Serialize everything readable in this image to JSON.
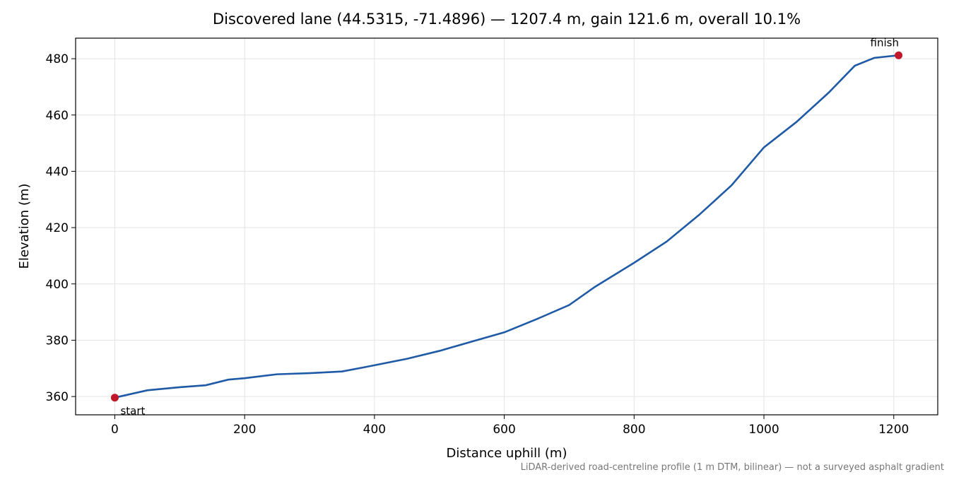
{
  "chart_data": {
    "type": "line",
    "title": "Discovered lane (44.5315, -71.4896) — 1207.4 m, gain 121.6 m, overall 10.1%",
    "x_label": "Distance uphill (m)",
    "y_label": "Elevation (m)",
    "footnote": "LiDAR-derived road-centreline profile (1 m DTM, bilinear) — not a surveyed asphalt gradient",
    "x": [
      0,
      50,
      100,
      140,
      175,
      200,
      250,
      300,
      350,
      380,
      400,
      450,
      500,
      550,
      600,
      650,
      700,
      740,
      800,
      850,
      900,
      950,
      1000,
      1050,
      1100,
      1140,
      1170,
      1207.4
    ],
    "series": [
      {
        "color": "#1f5aa6",
        "values": [
          359.6,
          362.2,
          363.3,
          364.0,
          366.0,
          366.5,
          367.9,
          368.3,
          368.9,
          370.2,
          371.1,
          373.4,
          376.2,
          379.5,
          382.8,
          387.5,
          392.5,
          399.0,
          407.5,
          415.0,
          424.5,
          435.0,
          448.5,
          457.5,
          468.0,
          477.5,
          480.3,
          481.2
        ]
      }
    ],
    "annotations": [
      {
        "text": "start",
        "x": 0,
        "y": 359.6
      },
      {
        "text": "finish",
        "x": 1207.4,
        "y": 481.2
      }
    ],
    "marker_color": "#c0182a",
    "xlim": [
      -60.37,
      1267.77
    ],
    "ylim": [
      353.5,
      487.3
    ],
    "xticks": [
      0,
      200,
      400,
      600,
      800,
      1000,
      1200
    ],
    "yticks": [
      360,
      380,
      400,
      420,
      440,
      460,
      480
    ],
    "grid": true
  }
}
